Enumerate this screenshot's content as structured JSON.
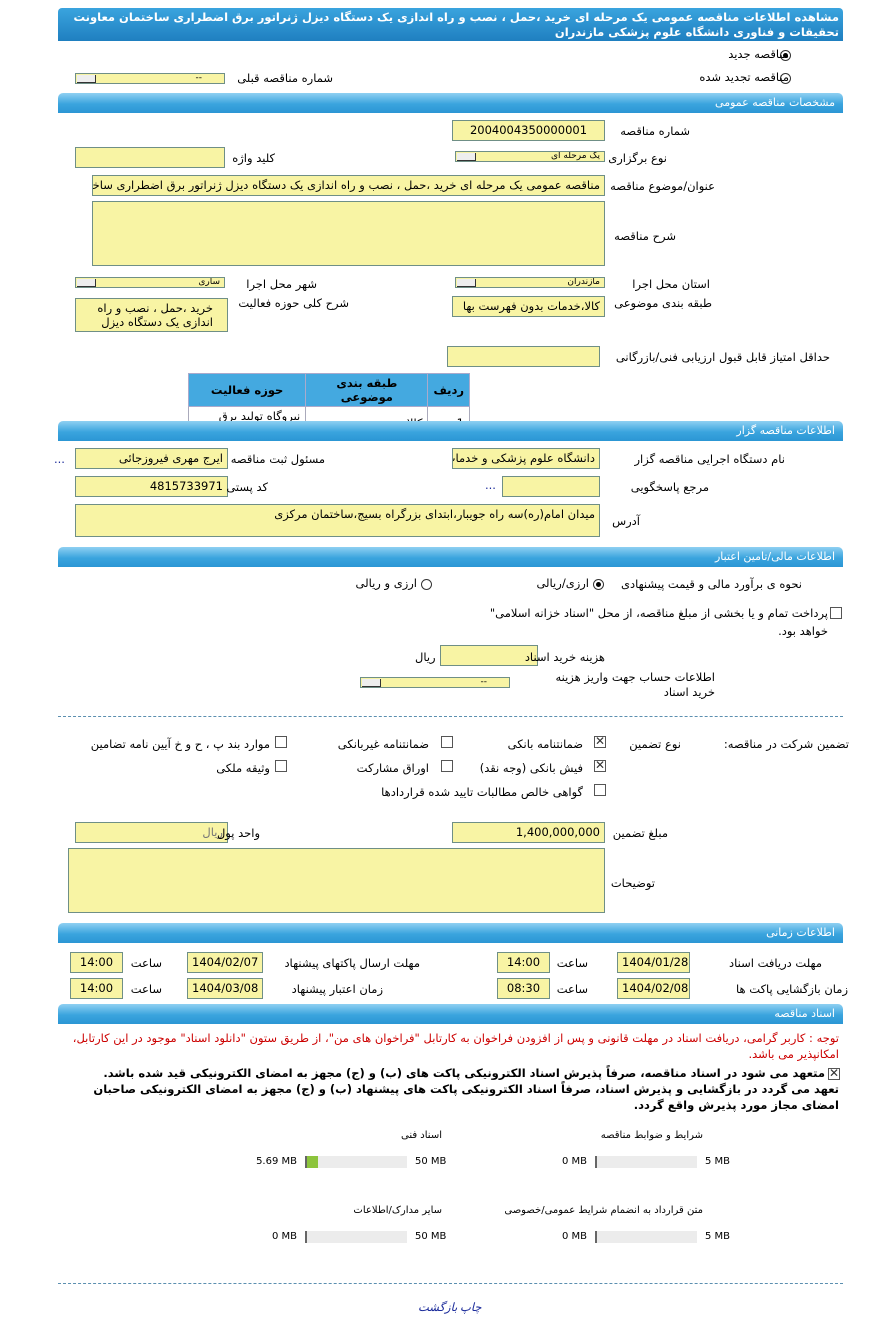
{
  "title": "مشاهده اطلاعات مناقصه عمومی یک مرحله ای خرید ،حمل ، نصب و راه اندازی یک دستگاه دیزل ژنراتور برق اضطراری ساختمان معاونت تحقیقات و فناوری دانشگاه علوم پزشکی مازندران",
  "tender_type": {
    "new_label": "مناقصه جدید",
    "new_selected": true,
    "renewed_label": "مناقصه تجدید شده",
    "prev_number_label": "شماره مناقصه قبلی",
    "prev_number_value": "--"
  },
  "general": {
    "header": "مشخصات مناقصه عمومی",
    "number_label": "شماره مناقصه",
    "number": "2004004350000001",
    "keyword_label": "کلید واژه",
    "keyword": "",
    "holding_type_label": "نوع برگزاری",
    "holding_type": "یک مرحله ای",
    "subject_label": "عنوان/موضوع مناقصه",
    "subject": "مناقصه عمومی یک مرحله ای خرید ،حمل ، نصب و راه اندازی یک دستگاه دیزل ژنراتور برق اضطراری ساختمان",
    "description_label": "شرح مناقصه",
    "description": "",
    "province_label": "استان محل اجرا",
    "province": "مازندران",
    "city_label": "شهر محل اجرا",
    "city": "ساری",
    "category_label": "طبقه بندی موضوعی",
    "category": "کالا،خدمات بدون فهرست بها",
    "activity_desc_label": "شرح کلی حوزه فعالیت",
    "activity_desc": "خرید ،حمل ، نصب و راه اندازی یک دستگاه دیزل",
    "min_score_label": "حداقل امتیاز قابل قبول ارزیابی فنی/بازرگانی",
    "min_score": "",
    "table": {
      "headers": [
        "ردیف",
        "طبقه بندی موضوعی",
        "حوزه فعالیت"
      ],
      "rows": [
        [
          "1",
          "کالا",
          "نیروگاه تولید برق دیزلی"
        ]
      ]
    }
  },
  "organizer": {
    "header": "اطلاعات مناقصه گزار",
    "org_label": "نام دستگاه اجرایی مناقصه گزار",
    "org": "دانشگاه علوم پزشکی و خدمات",
    "responsible_label": "مسئول ثبت مناقصه",
    "responsible": "ایرج مهری فیروزجائی",
    "more": "...",
    "reference_label": "مرجع پاسخگویی",
    "reference": "",
    "postal_label": "کد پستی",
    "postal": "4815733971",
    "address_label": "آدرس",
    "address": "میدان امام(ره)سه راه جویبار،ابتدای بزرگراه بسیج،ساختمان مرکزی"
  },
  "finance": {
    "header": "اطلاعات مالی/تامین اعتبار",
    "estimate_label": "نحوه ی برآورد مالی و قیمت پیشنهادی",
    "opt1": "ارزی/ریالی",
    "opt1_selected": true,
    "opt2": "ارزی و ریالی",
    "treasury_text": "پرداخت تمام و یا بخشی از مبلغ مناقصه، از محل \"اسناد خزانه اسلامی\" خواهد بود.",
    "doc_fee_label": "هزینه خرید اسناد",
    "doc_fee": "",
    "rial": "ریال",
    "account_label": "اطلاعات حساب جهت واریز هزینه خرید اسناد",
    "account": "--"
  },
  "guarantee": {
    "label": "تضمین شرکت در مناقصه:",
    "type_label": "نوع تضمین",
    "options": [
      {
        "label": "ضمانتنامه بانکی",
        "checked": true
      },
      {
        "label": "ضمانتنامه غیربانکی",
        "checked": false
      },
      {
        "label": "موارد بند پ ، ح و خ آیین نامه تضامین",
        "checked": false
      },
      {
        "label": "فیش بانکی (وجه نقد)",
        "checked": true
      },
      {
        "label": "اوراق مشارکت",
        "checked": false
      },
      {
        "label": "وثیقه ملکی",
        "checked": false
      },
      {
        "label": "گواهی خالص مطالبات تایید شده قراردادها",
        "checked": false
      }
    ],
    "amount_label": "مبلغ تضمین",
    "amount": "1,400,000,000",
    "currency_label": "واحد پول",
    "currency": "ریال",
    "notes_label": "توضیحات",
    "notes": ""
  },
  "timing": {
    "header": "اطلاعات زمانی",
    "hour_label": "ساعت",
    "doc_receive_label": "مهلت دریافت اسناد",
    "doc_receive_date": "1404/01/28",
    "doc_receive_time": "14:00",
    "submit_label": "مهلت ارسال پاکتهای پیشنهاد",
    "submit_date": "1404/02/07",
    "submit_time": "14:00",
    "opening_label": "زمان بازگشایی پاکت ها",
    "opening_date": "1404/02/08",
    "opening_time": "08:30",
    "validity_label": "زمان اعتبار پیشنهاد",
    "validity_date": "1404/03/08",
    "validity_time": "14:00"
  },
  "documents": {
    "header": "اسناد مناقصه",
    "note": "توجه : کاربر گرامی، دریافت اسناد در مهلت قانونی و پس از افزودن فراخوان به کارتابل \"فراخوان های من\"، از طریق ستون \"دانلود اسناد\" موجود در این کارتابل، امکانپذیر می باشد.",
    "commit1": "متعهد می شود در اسناد مناقصه، صرفاً پذیرش اسناد الکترونیکی پاکت های (ب) و (ج) مجهز به امضای الکترونیکی قید شده باشد.",
    "commit2": "تعهد می گردد در بازگشایی و پذیرش اسناد، صرفاً اسناد الکترونیکی پاکت های پیشنهاد (ب) و (ج) مجهز به امضای الکترونیکی صاحبان امضای مجاز مورد پذیرش واقع گردد.",
    "files": [
      {
        "label": "شرایط و ضوابط مناقصه",
        "used": "0 MB",
        "max": "5 MB",
        "fraction": 0
      },
      {
        "label": "اسناد فنی",
        "used": "5.69 MB",
        "max": "50 MB",
        "fraction": 0.1138
      },
      {
        "label": "متن قرارداد به انضمام شرایط عمومی/خصوصی",
        "used": "0 MB",
        "max": "5 MB",
        "fraction": 0
      },
      {
        "label": "سایر مدارک/اطلاعات",
        "used": "0 MB",
        "max": "50 MB",
        "fraction": 0
      }
    ]
  },
  "footer": {
    "print": "چاپ",
    "back": "بازگشت"
  },
  "colors": {
    "header_blue": "#2b96d4",
    "field_yellow": "#f8f4a4",
    "note_red": "#cc0000",
    "progress_green": "#8cc43c"
  }
}
